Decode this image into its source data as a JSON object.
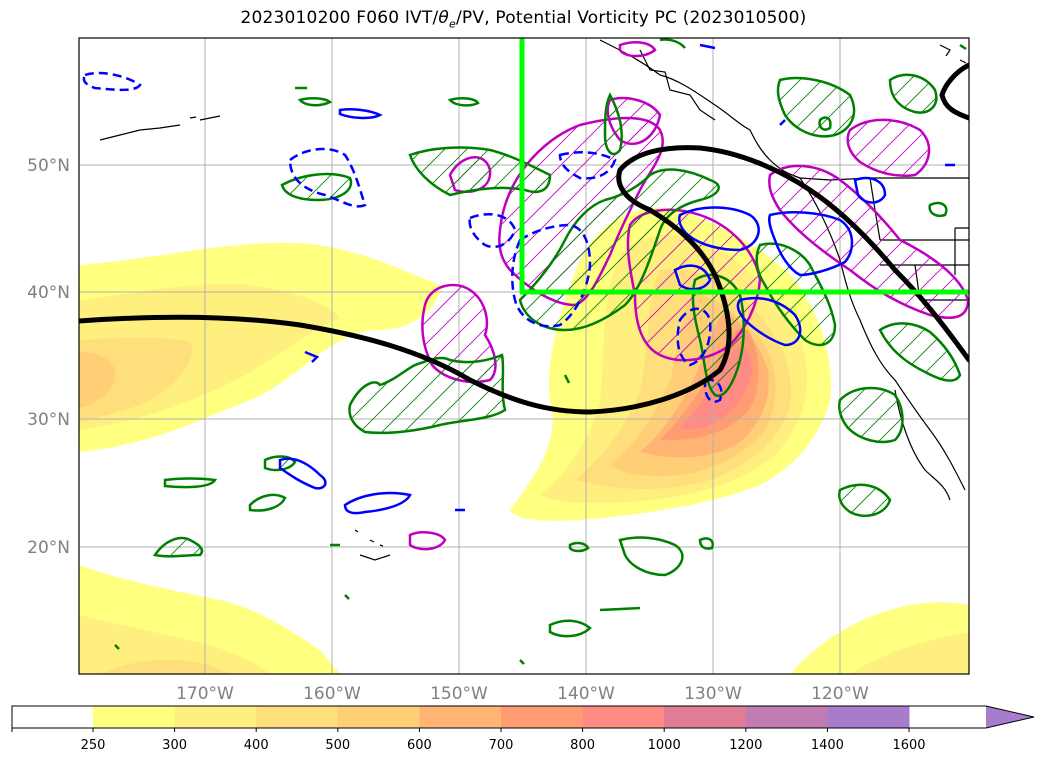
{
  "title": {
    "prefix": "2023010200 F060 IVT/",
    "theta": "θ",
    "theta_sub": "e",
    "suffix": "/PV, Potential Vorticity PC (2023010500)"
  },
  "map": {
    "lat_labels": [
      "20°N",
      "30°N",
      "40°N",
      "50°N"
    ],
    "lat_values": [
      20,
      30,
      40,
      50
    ],
    "lon_labels": [
      "170°W",
      "160°W",
      "150°W",
      "140°W",
      "130°W",
      "120°W"
    ],
    "lon_values": [
      -170,
      -160,
      -150,
      -140,
      -130,
      -120
    ],
    "extent": {
      "lon_min": -180,
      "lon_max": -110,
      "lat_min": 10,
      "lat_max": 60
    },
    "colors": {
      "positive_contour": "#008000",
      "negative_contour": "#0000ff",
      "magenta_contour": "#bf00bf",
      "jet_line": "#000000",
      "box": "#00ff00",
      "coast": "#000000",
      "grid": "#b0b0b0"
    },
    "box": {
      "lon_min": -145,
      "lon_max": -110,
      "lat_min": 40,
      "lat_max": 60
    }
  },
  "colorbar": {
    "levels": [
      "250",
      "300",
      "400",
      "500",
      "600",
      "700",
      "800",
      "1000",
      "1200",
      "1400",
      "1600"
    ],
    "colors": [
      "#ffffff",
      "#ffff80",
      "#ffef7e",
      "#ffdf7b",
      "#ffcf78",
      "#ffb474",
      "#ff9c72",
      "#ff8c84",
      "#e07c94",
      "#c17cb2",
      "#a87ccc"
    ]
  }
}
